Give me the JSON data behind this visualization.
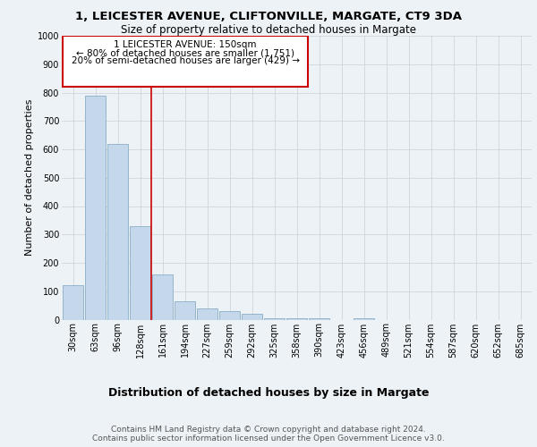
{
  "title1": "1, LEICESTER AVENUE, CLIFTONVILLE, MARGATE, CT9 3DA",
  "title2": "Size of property relative to detached houses in Margate",
  "xlabel": "Distribution of detached houses by size in Margate",
  "ylabel": "Number of detached properties",
  "categories": [
    "30sqm",
    "63sqm",
    "96sqm",
    "128sqm",
    "161sqm",
    "194sqm",
    "227sqm",
    "259sqm",
    "292sqm",
    "325sqm",
    "358sqm",
    "390sqm",
    "423sqm",
    "456sqm",
    "489sqm",
    "521sqm",
    "554sqm",
    "587sqm",
    "620sqm",
    "652sqm",
    "685sqm"
  ],
  "values": [
    120,
    790,
    620,
    330,
    160,
    65,
    40,
    30,
    20,
    5,
    5,
    5,
    0,
    5,
    0,
    0,
    0,
    0,
    0,
    0,
    0
  ],
  "bar_color": "#c5d8eb",
  "bar_edge_color": "#8aaec8",
  "vline_x": 3.5,
  "vline_color": "#cc0000",
  "annotation_line1": "1 LEICESTER AVENUE: 150sqm",
  "annotation_line2": "← 80% of detached houses are smaller (1,751)",
  "annotation_line3": "20% of semi-detached houses are larger (429) →",
  "annotation_box_color": "#ffffff",
  "annotation_box_edge_color": "#cc0000",
  "ylim": [
    0,
    1000
  ],
  "yticks": [
    0,
    100,
    200,
    300,
    400,
    500,
    600,
    700,
    800,
    900,
    1000
  ],
  "background_color": "#edf2f7",
  "grid_color": "#c8d0d8",
  "footer_text": "Contains HM Land Registry data © Crown copyright and database right 2024.\nContains public sector information licensed under the Open Government Licence v3.0.",
  "title1_fontsize": 9.5,
  "title2_fontsize": 8.5,
  "xlabel_fontsize": 9,
  "ylabel_fontsize": 8,
  "tick_fontsize": 7,
  "annotation_fontsize": 7.5,
  "footer_fontsize": 6.5
}
